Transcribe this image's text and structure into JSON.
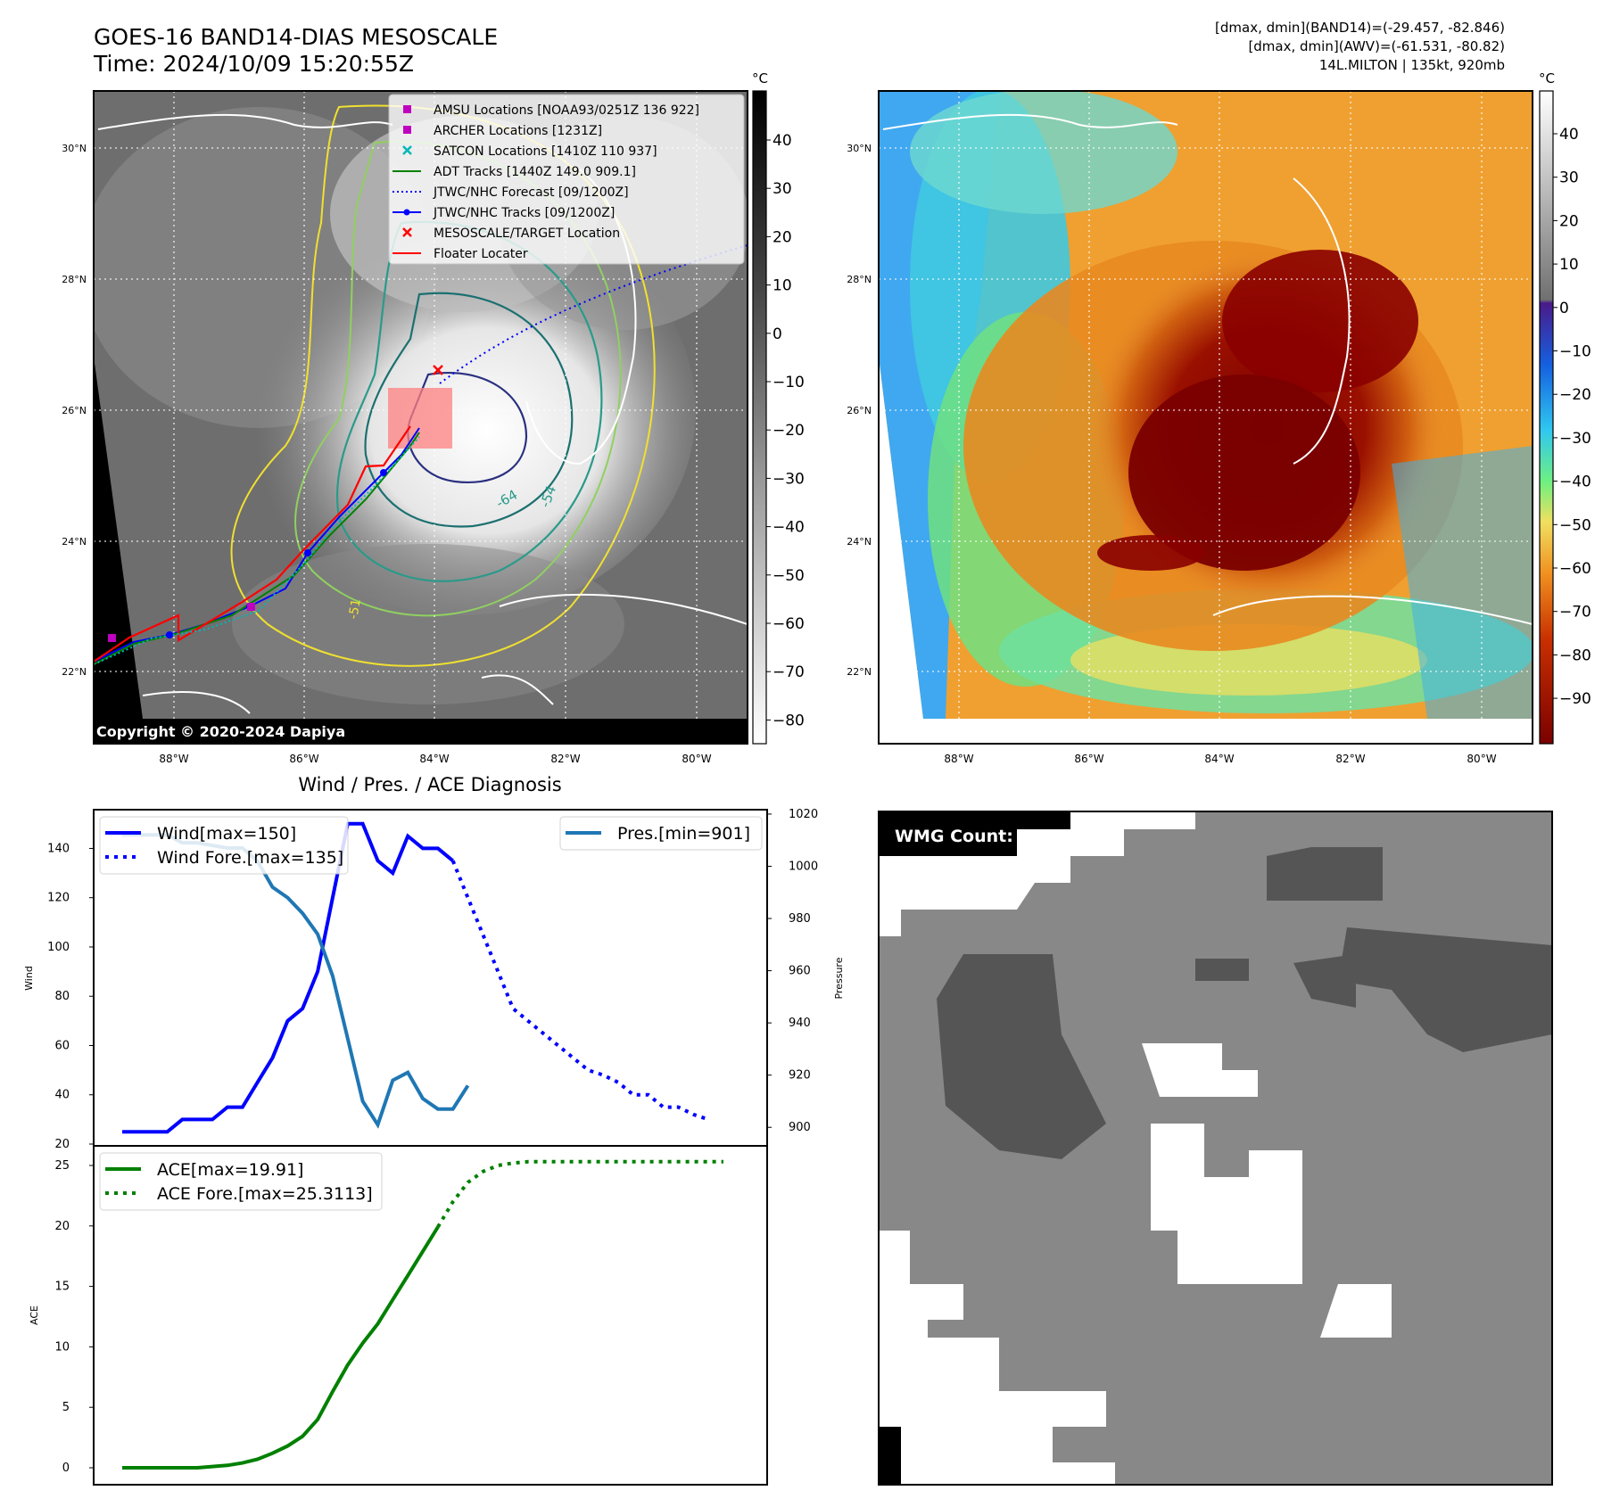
{
  "header": {
    "title_line1": "GOES-16 BAND14-DIAS MESOSCALE",
    "title_line2": "Time: 2024/10/09 15:20:55Z",
    "info_line1": "[dmax, dmin](BAND14)=(-29.457, -82.846)",
    "info_line2": "[dmax, dmin](AWV)=(-61.531, -80.82)",
    "info_line3": "14L.MILTON | 135kt, 920mb"
  },
  "map_axes": {
    "lat_labels": [
      "30°N",
      "28°N",
      "26°N",
      "24°N",
      "22°N"
    ],
    "lon_labels": [
      "88°W",
      "86°W",
      "84°W",
      "82°W",
      "80°W"
    ]
  },
  "ir_panel": {
    "colorbar_unit": "°C",
    "colorbar_ticks": [
      "40",
      "30",
      "20",
      "10",
      "0",
      "−10",
      "−20",
      "−30",
      "−40",
      "−50",
      "−60",
      "−70",
      "−80"
    ],
    "copyright": "Copyright © 2020-2024 Dapiya",
    "contour_labels": [
      "-64",
      "-54",
      "-51"
    ],
    "legend": [
      {
        "label": "AMSU Locations [NOAA93/0251Z 136 922]",
        "color": "#c000c0",
        "marker": "square"
      },
      {
        "label": "ARCHER Locations [1231Z]",
        "color": "#c000c0",
        "marker": "square"
      },
      {
        "label": "SATCON Locations [1410Z 110 937]",
        "color": "#00b8b8",
        "marker": "x"
      },
      {
        "label": "ADT Tracks [1440Z 149.0 909.1]",
        "color": "#008000",
        "marker": "line"
      },
      {
        "label": "JTWC/NHC Forecast [09/1200Z]",
        "color": "#0000ff",
        "marker": "dotted"
      },
      {
        "label": "JTWC/NHC Tracks [09/1200Z]",
        "color": "#0000ff",
        "marker": "line-dot"
      },
      {
        "label": "MESOSCALE/TARGET Location",
        "color": "#ff0000",
        "marker": "x"
      },
      {
        "label": "Floater Locater",
        "color": "#ff0000",
        "marker": "line"
      }
    ]
  },
  "wv_panel": {
    "colorbar_unit": "°C",
    "colorbar_ticks": [
      "40",
      "30",
      "20",
      "10",
      "0",
      "−10",
      "−20",
      "−30",
      "−40",
      "−50",
      "−60",
      "−70",
      "−80",
      "−90"
    ]
  },
  "wmg_panel": {
    "label": "WMG Count: 0"
  },
  "chart_data": [
    {
      "type": "line",
      "title": "Wind / Pres. / ACE Diagnosis",
      "ylabel": "Wind",
      "ylabel_right": "Pressure",
      "ylim": [
        20,
        155
      ],
      "ylim_right": [
        897,
        1021
      ],
      "yticks": [
        "140",
        "120",
        "100",
        "80",
        "60",
        "40",
        "20"
      ],
      "yticks_right": [
        "1020",
        "1000",
        "980",
        "960",
        "940",
        "920",
        "900"
      ],
      "series": [
        {
          "name": "Wind[max=150]",
          "color": "#0000ff",
          "style": "solid",
          "values": [
            25,
            25,
            25,
            25,
            30,
            30,
            30,
            35,
            35,
            45,
            55,
            70,
            75,
            90,
            120,
            150,
            150,
            135,
            130,
            145,
            140,
            140,
            135
          ]
        },
        {
          "name": "Wind Fore.[max=135]",
          "color": "#0000ff",
          "style": "dotted",
          "x_start": 22,
          "values": [
            135,
            120,
            105,
            90,
            75,
            70,
            65,
            60,
            55,
            50,
            48,
            45,
            40,
            40,
            35,
            35,
            32,
            30
          ]
        },
        {
          "name": "Pres.[min=901]",
          "color": "#1f77b4",
          "style": "solid",
          "axis": "right",
          "values": [
            1012,
            1012,
            1012,
            1012,
            1009,
            1009,
            1008,
            1007,
            1007,
            1002,
            992,
            988,
            982,
            974,
            958,
            934,
            910,
            901,
            918,
            921,
            911,
            907,
            907,
            916
          ]
        }
      ]
    },
    {
      "type": "line",
      "ylabel": "ACE",
      "ylim": [
        -1,
        26
      ],
      "yticks": [
        "25",
        "20",
        "15",
        "10",
        "5",
        "0"
      ],
      "series": [
        {
          "name": "ACE[max=19.91]",
          "color": "#008000",
          "style": "solid",
          "values": [
            0,
            0,
            0,
            0,
            0,
            0,
            0.1,
            0.2,
            0.4,
            0.7,
            1.2,
            1.8,
            2.6,
            4.0,
            6.3,
            8.5,
            10.3,
            11.9,
            13.9,
            15.9,
            17.9,
            19.91
          ]
        },
        {
          "name": "ACE Fore.[max=25.3113]",
          "color": "#008000",
          "style": "dotted",
          "x_start": 21,
          "values": [
            19.91,
            22.0,
            23.6,
            24.5,
            25.0,
            25.2,
            25.3113,
            25.3113,
            25.3113,
            25.3113,
            25.3113,
            25.3113,
            25.3113,
            25.3113,
            25.3113,
            25.3113,
            25.3113,
            25.3113,
            25.3113,
            25.3113
          ]
        }
      ]
    }
  ]
}
